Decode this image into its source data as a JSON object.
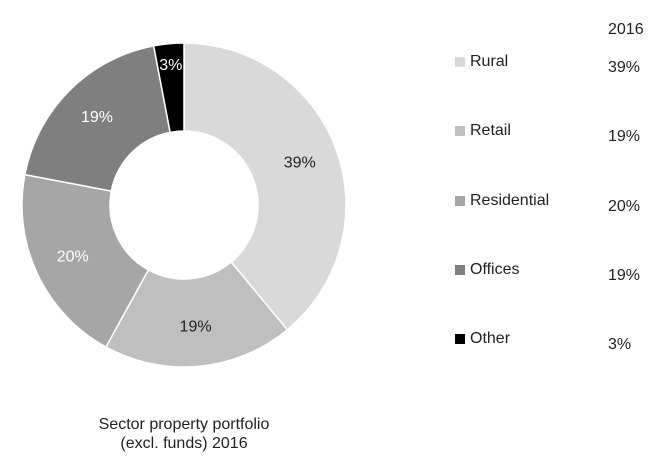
{
  "chart_data": {
    "type": "donut",
    "title": [
      "Sector property portfolio",
      "(excl. funds) 2016"
    ],
    "column_header": "2016",
    "categories": [
      "Rural",
      "Retail",
      "Residential",
      "Offices",
      "Other"
    ],
    "values": [
      39,
      19,
      20,
      19,
      3
    ],
    "value_labels": [
      "39%",
      "19%",
      "20%",
      "19%",
      "3%"
    ],
    "colors": [
      "#d9d9d9",
      "#bfbfbf",
      "#a6a6a6",
      "#7f7f7f",
      "#000000"
    ],
    "label_colors": [
      "#222222",
      "#222222",
      "#ffffff",
      "#ffffff",
      "#ffffff"
    ]
  }
}
